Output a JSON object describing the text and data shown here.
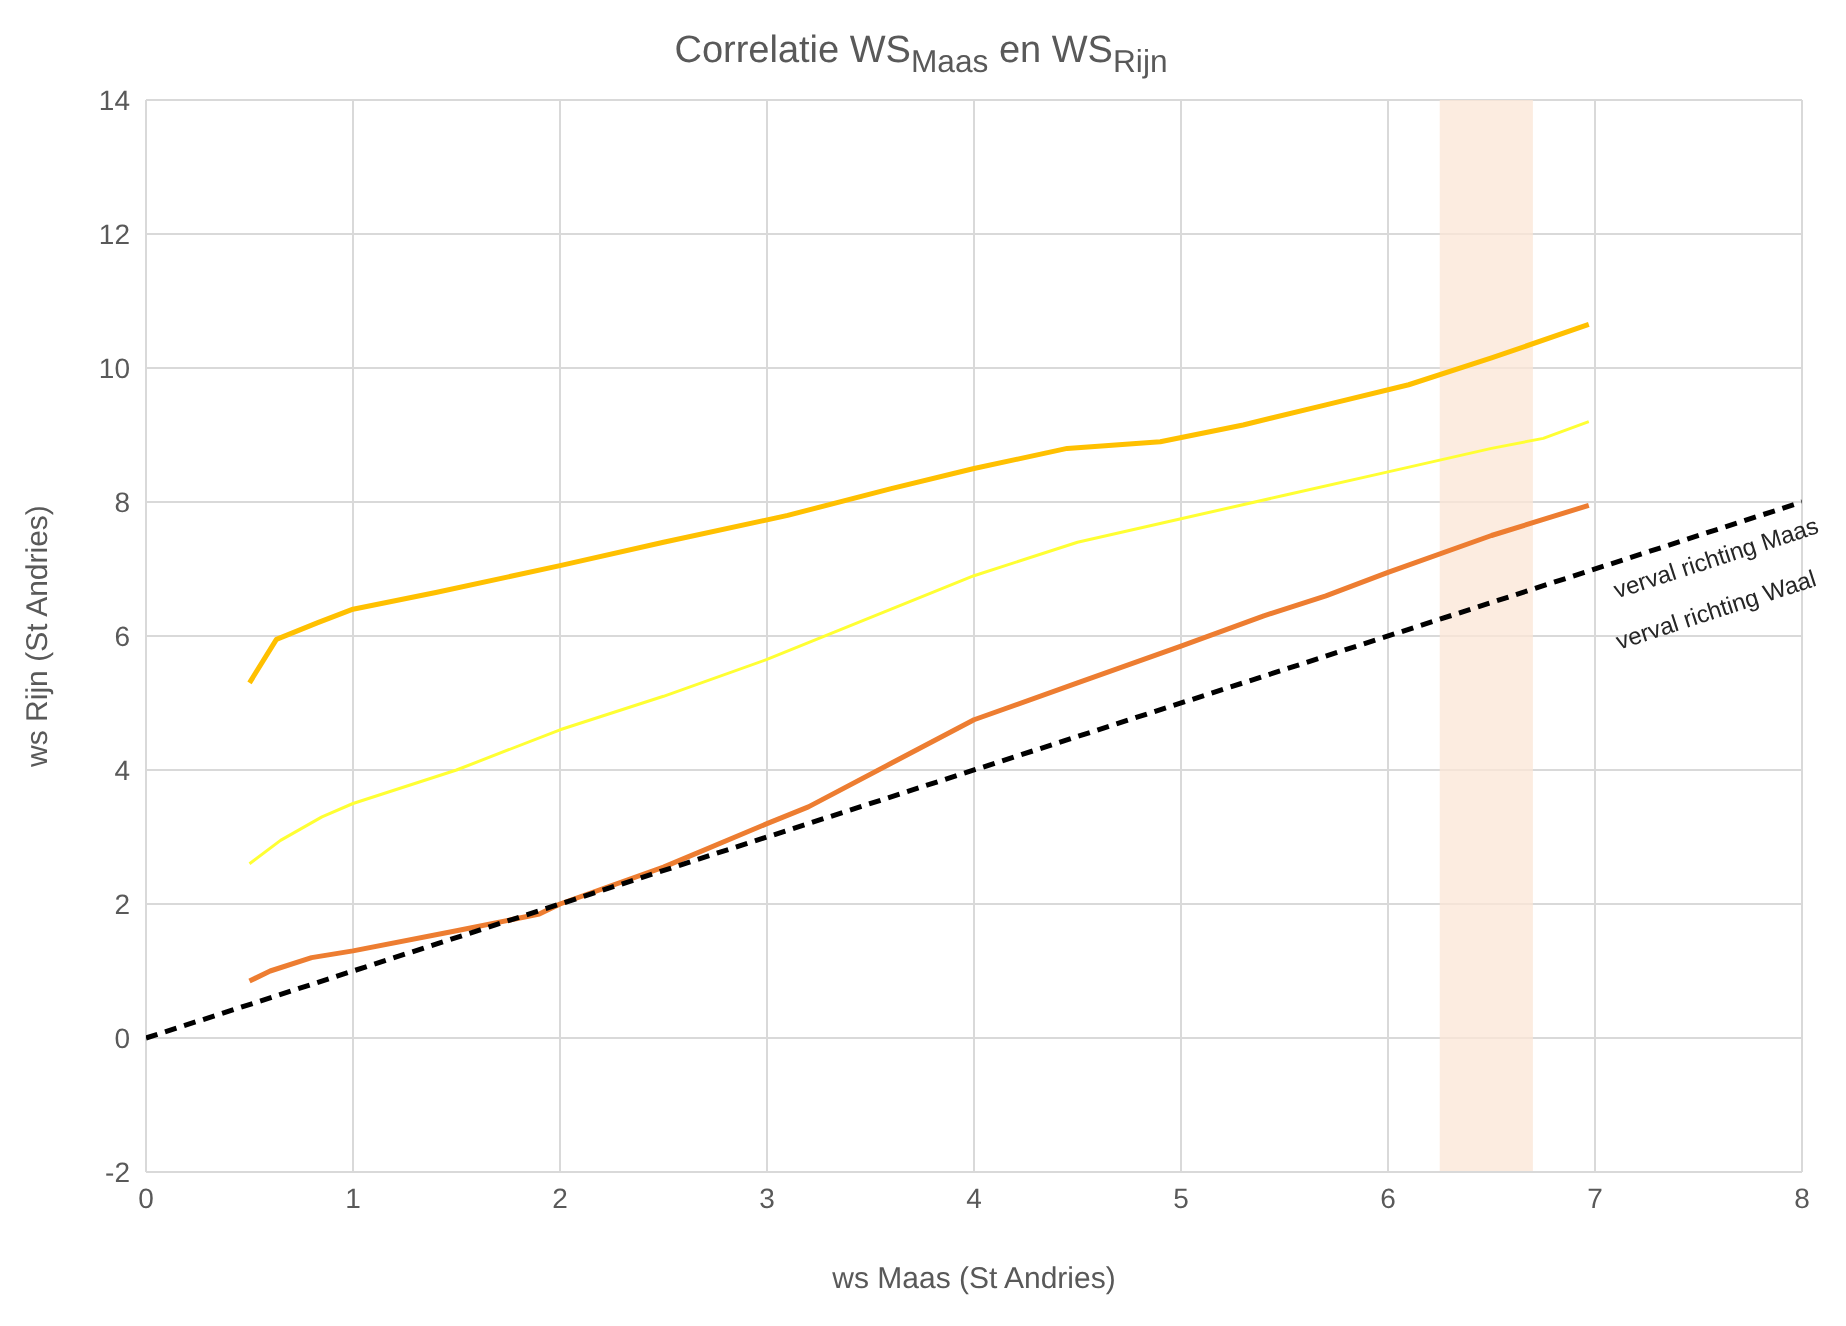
{
  "chart_data": {
    "type": "line",
    "title": "Correlatie WS$_{Maas}$ en WS$_{Rijn}$",
    "xlabel": "ws Maas (St Andries)",
    "ylabel": "ws Rijn (St Andries)",
    "xlim": [
      0,
      8
    ],
    "xticks": [
      0,
      1,
      2,
      3,
      4,
      5,
      6,
      7,
      8
    ],
    "ylim": [
      -2,
      14
    ],
    "yticks": [
      -2,
      0,
      2,
      4,
      6,
      8,
      10,
      12,
      14
    ],
    "grid": true,
    "marker": "none",
    "series": [
      {
        "color": "#ffc000",
        "x": [
          0.5,
          0.63,
          0.83,
          1.0,
          1.4,
          2.0,
          2.5,
          3.1,
          3.6,
          4.0,
          4.45,
          4.9,
          5.3,
          5.7,
          6.1,
          6.5,
          6.97
        ],
        "values": [
          5.3,
          5.95,
          6.2,
          6.4,
          6.65,
          7.05,
          7.4,
          7.8,
          8.2,
          8.5,
          8.8,
          8.9,
          9.15,
          9.45,
          9.75,
          10.15,
          10.65
        ]
      },
      {
        "color": "#ffff33",
        "x": [
          0.5,
          0.65,
          0.85,
          1.0,
          1.5,
          2.0,
          2.5,
          3.0,
          3.2,
          3.6,
          4.0,
          4.5,
          5.0,
          5.5,
          6.0,
          6.5,
          6.75,
          6.97
        ],
        "values": [
          2.6,
          2.95,
          3.3,
          3.5,
          4.0,
          4.6,
          5.1,
          5.65,
          5.9,
          6.4,
          6.9,
          7.4,
          7.75,
          8.1,
          8.45,
          8.8,
          8.95,
          9.2
        ]
      },
      {
        "color": "#ed7d31",
        "x": [
          0.5,
          0.6,
          0.8,
          1.0,
          1.5,
          1.9,
          2.0,
          2.5,
          3.0,
          3.2,
          3.6,
          4.0,
          4.5,
          5.0,
          5.4,
          5.7,
          6.0,
          6.5,
          6.97
        ],
        "values": [
          0.85,
          1.0,
          1.2,
          1.3,
          1.6,
          1.85,
          2.0,
          2.55,
          3.2,
          3.45,
          4.1,
          4.75,
          5.3,
          5.85,
          6.3,
          6.6,
          6.95,
          7.5,
          7.95
        ]
      },
      {
        "color": "#000000",
        "line_style": "dashed",
        "x": [
          0,
          8
        ],
        "values": [
          0,
          8
        ]
      }
    ],
    "bands": [
      {
        "axis": "x",
        "from": 6.25,
        "to": 6.7,
        "color": "#fbe5d6"
      }
    ],
    "annotations": [
      "verval richting Maas",
      "verval richting Waal"
    ]
  }
}
